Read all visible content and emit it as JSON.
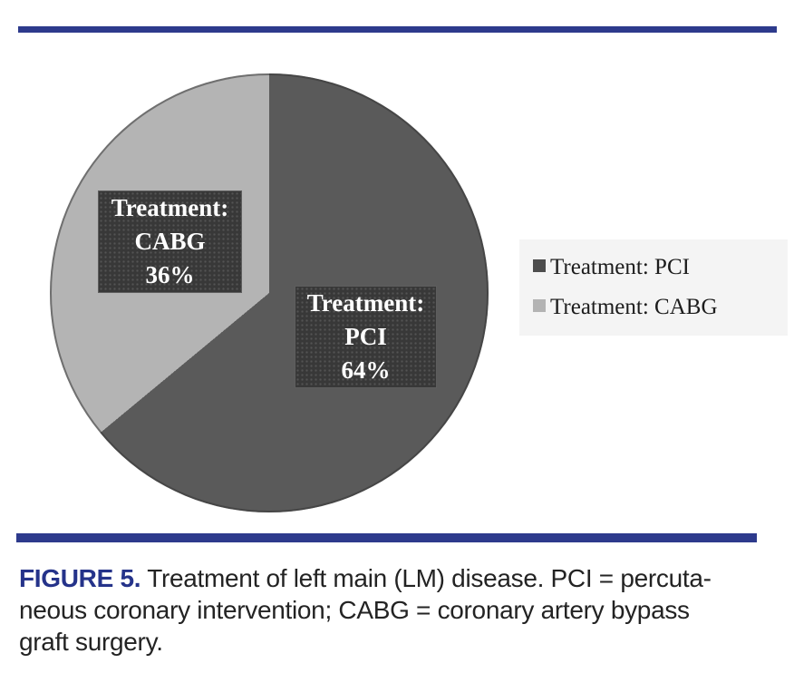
{
  "accent_navy": "#2d3a8c",
  "chart_data": {
    "type": "pie",
    "title": "",
    "slices": [
      {
        "label": "Treatment: PCI",
        "value_pct": 64,
        "color": "#5a5a5a",
        "callout": [
          "Treatment:",
          "PCI",
          "64%"
        ]
      },
      {
        "label": "Treatment: CABG",
        "value_pct": 36,
        "color": "#b4b4b4",
        "callout": [
          "Treatment:",
          "CABG",
          "36%"
        ]
      }
    ],
    "start_angle_deg": 0,
    "direction": "clockwise",
    "legend_position": "right"
  },
  "legend": {
    "items": [
      {
        "label": "Treatment: PCI",
        "swatch": "#4d4d4d"
      },
      {
        "label": "Treatment: CABG",
        "swatch": "#b3b3b3"
      }
    ]
  },
  "caption": {
    "lead": "FIGURE 5.",
    "line1": " Treatment of left main (LM) disease. PCI = percuta-",
    "line2": "neous coronary intervention; CABG = coronary artery bypass",
    "line3": "graft surgery."
  }
}
